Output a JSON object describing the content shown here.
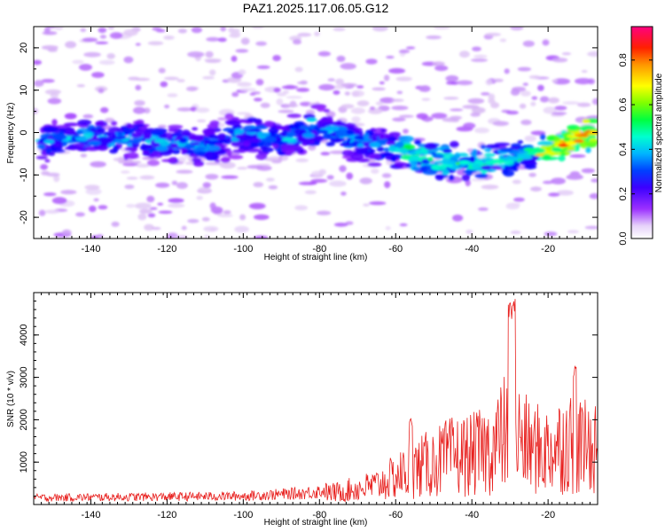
{
  "title": "PAZ1.2025.117.06.05.G12",
  "chart_data": [
    {
      "type": "heatmap",
      "xlabel": "Height of straight line (km)",
      "ylabel": "Frequency (Hz)",
      "xlim": [
        -155,
        -7
      ],
      "ylim": [
        -25,
        25
      ],
      "x_ticks": [
        -140,
        -120,
        -100,
        -80,
        -60,
        -40,
        -20
      ],
      "y_ticks": [
        -20,
        -10,
        0,
        10,
        20
      ],
      "colorbar": {
        "label": "Normalized spectral amplitude",
        "range": [
          0,
          0.95
        ],
        "ticks": [
          0.0,
          0.2,
          0.4,
          0.6,
          0.8
        ],
        "colors": [
          "#ffffff",
          "#dcc0f5",
          "#9b30ff",
          "#5a00ff",
          "#0000ff",
          "#00b4ff",
          "#00ffd0",
          "#00ff40",
          "#b4ff00",
          "#ffff00",
          "#ff9600",
          "#ff2000",
          "#ff0080"
        ]
      },
      "ridge": {
        "x": [
          -152,
          -140,
          -125,
          -110,
          -100,
          -90,
          -80,
          -70,
          -60,
          -50,
          -40,
          -30,
          -20,
          -10
        ],
        "y": [
          -2,
          -1,
          -2,
          -3,
          0,
          -2,
          1,
          -2,
          -4,
          -6,
          -8,
          -6,
          -4,
          0
        ]
      }
    },
    {
      "type": "line",
      "xlabel": "Height of straight line (km)",
      "ylabel": "SNR (10 * v/v)",
      "xlim": [
        -155,
        -7
      ],
      "ylim": [
        0,
        5000
      ],
      "x_ticks": [
        -140,
        -120,
        -100,
        -80,
        -60,
        -40,
        -20
      ],
      "y_ticks": [
        1000,
        2000,
        3000,
        4000
      ],
      "color": "#e8201e",
      "envelope": {
        "x": [
          -155,
          -120,
          -100,
          -85,
          -75,
          -65,
          -55,
          -45,
          -40,
          -35,
          -30,
          -25,
          -20,
          -15,
          -10,
          -7
        ],
        "y": [
          200,
          230,
          250,
          330,
          450,
          700,
          1300,
          1750,
          1800,
          2000,
          2800,
          2050,
          1950,
          2300,
          2050,
          2200
        ]
      },
      "peaks": [
        {
          "x": -56,
          "y": 2050
        },
        {
          "x": -30,
          "y": 4850
        },
        {
          "x": -29,
          "y": 4950
        },
        {
          "x": -13,
          "y": 3300
        }
      ]
    }
  ]
}
